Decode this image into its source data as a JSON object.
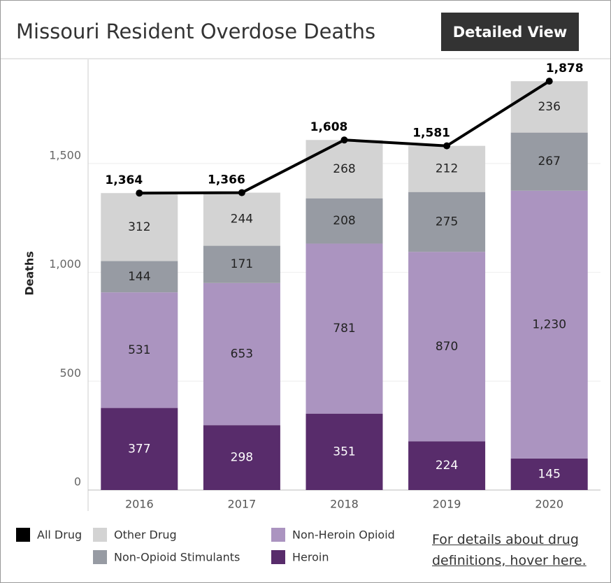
{
  "title": "Missouri Resident Overdose Deaths",
  "button": "Detailed View",
  "link": "For details about drug definitions, hover here.",
  "chart_data": {
    "type": "bar",
    "stacked": true,
    "y_label": "Deaths",
    "categories": [
      "2016",
      "2017",
      "2018",
      "2019",
      "2020"
    ],
    "ylim": [
      0,
      1978
    ],
    "yticks": [
      0,
      500,
      {
        "value": 1000,
        "label": "1,000"
      },
      {
        "value": 1500,
        "label": "1,500"
      }
    ],
    "grid": true,
    "series": [
      {
        "name": "All Drug",
        "type": "line",
        "color": "#000000",
        "values": [
          1364,
          1366,
          1608,
          1581,
          1878
        ],
        "value_labels": [
          "1,364",
          "1,366",
          "1,608",
          "1,581",
          "1,878"
        ]
      },
      {
        "name": "Heroin",
        "color": "#582c6b",
        "values": [
          377,
          298,
          351,
          224,
          145
        ]
      },
      {
        "name": "Non-Heroin Opioid",
        "color": "#ab94c0",
        "values": [
          531,
          653,
          781,
          870,
          1230
        ],
        "value_labels": [
          "531",
          "653",
          "781",
          "870",
          "1,230"
        ]
      },
      {
        "name": "Non-Opioid Stimulants",
        "color": "#979ba3",
        "values": [
          144,
          171,
          208,
          275,
          267
        ]
      },
      {
        "name": "Other Drug",
        "color": "#d3d3d3",
        "values": [
          312,
          244,
          268,
          212,
          236
        ]
      }
    ]
  }
}
